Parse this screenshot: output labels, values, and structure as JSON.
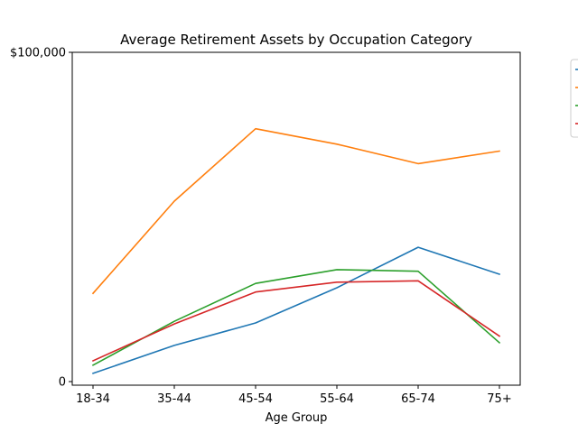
{
  "chart_data": {
    "type": "line",
    "title": "Average Retirement Assets by Occupation Category",
    "xlabel": "Age Group",
    "ylabel": "",
    "categories": [
      "18-34",
      "35-44",
      "45-54",
      "55-64",
      "65-74",
      "75+"
    ],
    "ylim": [
      0,
      100000
    ],
    "yticks": [
      {
        "value": 0,
        "label": "0"
      },
      {
        "value": 100000,
        "label": "$100,000"
      }
    ],
    "grid": false,
    "legend": {
      "placement": "right, outside plot (clipped)",
      "entries": 4
    },
    "series": [
      {
        "color": "#1f77b4",
        "values": [
          2500,
          11000,
          17800,
          28500,
          40800,
          32600
        ]
      },
      {
        "color": "#ff7f0e",
        "values": [
          26800,
          54800,
          76800,
          72100,
          66200,
          70000
        ]
      },
      {
        "color": "#2ca02c",
        "values": [
          5000,
          18300,
          29800,
          34000,
          33500,
          11800
        ]
      },
      {
        "color": "#d62728",
        "values": [
          6300,
          17500,
          27200,
          30200,
          30600,
          13800
        ]
      }
    ]
  }
}
